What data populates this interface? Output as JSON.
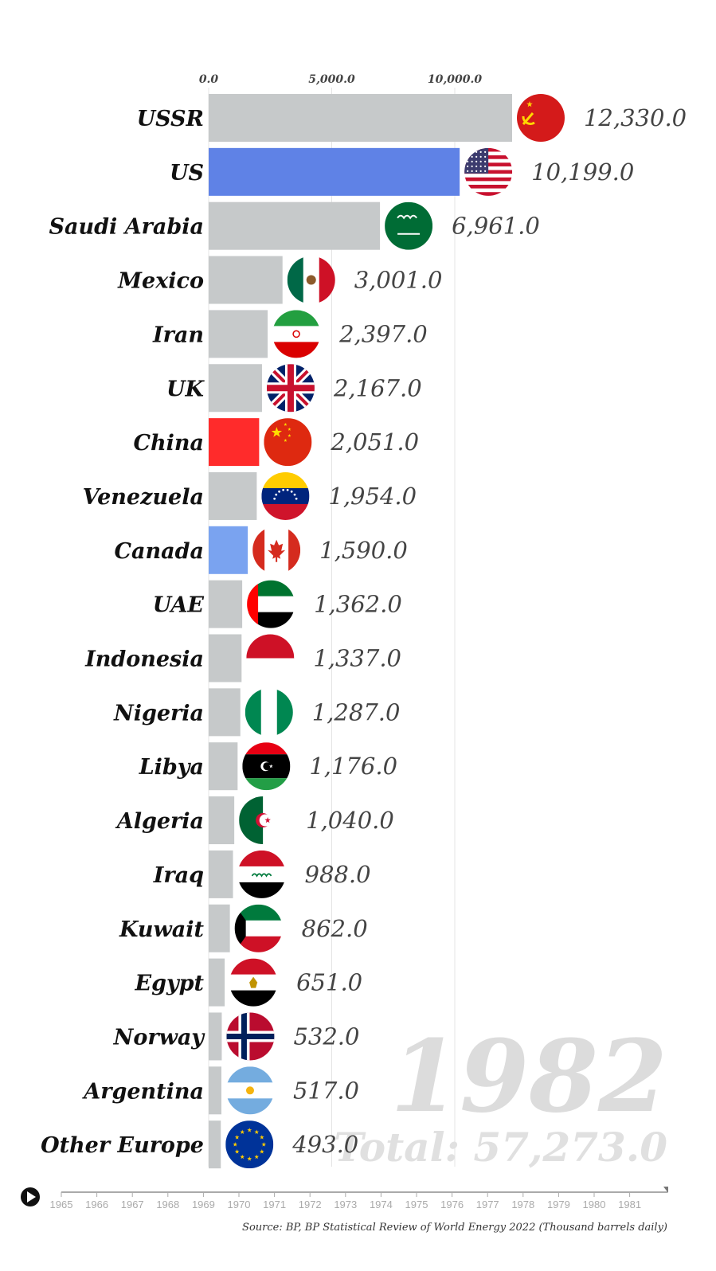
{
  "chart_data": {
    "type": "bar",
    "orientation": "horizontal",
    "year": "1982",
    "total_label": "Total: 57,273.0",
    "total": 57273.0,
    "xlim": [
      0,
      12330
    ],
    "x_ticks": [
      "0.0",
      "5,000.0",
      "10,000.0"
    ],
    "x_tick_values": [
      0,
      5000,
      10000
    ],
    "grid": true,
    "categories": [
      "USSR",
      "US",
      "Saudi Arabia",
      "Mexico",
      "Iran",
      "UK",
      "China",
      "Venezuela",
      "Canada",
      "UAE",
      "Indonesia",
      "Nigeria",
      "Libya",
      "Algeria",
      "Iraq",
      "Kuwait",
      "Egypt",
      "Norway",
      "Argentina",
      "Other Europe"
    ],
    "values": [
      12330.0,
      10199.0,
      6961.0,
      3001.0,
      2397.0,
      2167.0,
      2051.0,
      1954.0,
      1590.0,
      1362.0,
      1337.0,
      1287.0,
      1176.0,
      1040.0,
      988.0,
      862.0,
      651.0,
      532.0,
      517.0,
      493.0
    ],
    "value_labels": [
      "12,330.0",
      "10,199.0",
      "6,961.0",
      "3,001.0",
      "2,397.0",
      "2,167.0",
      "2,051.0",
      "1,954.0",
      "1,590.0",
      "1,362.0",
      "1,337.0",
      "1,287.0",
      "1,176.0",
      "1,040.0",
      "988.0",
      "862.0",
      "651.0",
      "532.0",
      "517.0",
      "493.0"
    ],
    "bar_colors": [
      "#c6c9ca",
      "#5f82e6",
      "#c6c9ca",
      "#c6c9ca",
      "#c6c9ca",
      "#c6c9ca",
      "#ff2b2b",
      "#c6c9ca",
      "#7aa3f0",
      "#c6c9ca",
      "#c6c9ca",
      "#c6c9ca",
      "#c6c9ca",
      "#c6c9ca",
      "#c6c9ca",
      "#c6c9ca",
      "#c6c9ca",
      "#c6c9ca",
      "#c6c9ca",
      "#c6c9ca"
    ],
    "flag_icons": [
      "ussr-flag-icon",
      "us-flag-icon",
      "saudi-arabia-flag-icon",
      "mexico-flag-icon",
      "iran-flag-icon",
      "uk-flag-icon",
      "china-flag-icon",
      "venezuela-flag-icon",
      "canada-flag-icon",
      "uae-flag-icon",
      "indonesia-flag-icon",
      "nigeria-flag-icon",
      "libya-flag-icon",
      "algeria-flag-icon",
      "iraq-flag-icon",
      "kuwait-flag-icon",
      "egypt-flag-icon",
      "norway-flag-icon",
      "argentina-flag-icon",
      "eu-flag-icon"
    ]
  },
  "timeline": {
    "years": [
      "1965",
      "1966",
      "1967",
      "1968",
      "1969",
      "1970",
      "1971",
      "1972",
      "1973",
      "1974",
      "1975",
      "1976",
      "1977",
      "1978",
      "1979",
      "1980",
      "1981"
    ],
    "progress": 1.0,
    "play_icon": "play-icon"
  },
  "source": "Source: BP, BP Statistical Review of World Energy 2022 (Thousand barrels daily)"
}
